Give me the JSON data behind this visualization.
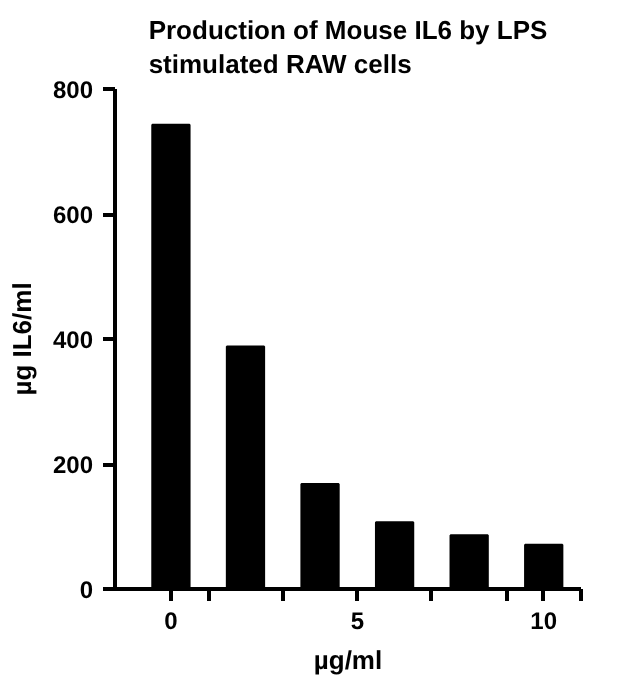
{
  "chart_data": {
    "type": "bar",
    "title": "Production of Mouse IL6 by LPS\nstimulated RAW cells",
    "xlabel": "µg/ml",
    "ylabel": "µg IL6/ml",
    "x": [
      0,
      2,
      4,
      6,
      8,
      10
    ],
    "values": [
      743,
      388,
      168,
      107,
      86,
      71
    ],
    "color": "#000000",
    "xlim": [
      -1.5,
      11
    ],
    "xticks": [
      0,
      {
        "value": 1,
        "label": null
      },
      {
        "value": 3,
        "label": null
      },
      5,
      {
        "value": 7,
        "label": null
      },
      {
        "value": 9,
        "label": null
      },
      10,
      {
        "value": 11,
        "label": null
      }
    ],
    "ylim": [
      0,
      800
    ],
    "yticks": [
      0,
      200,
      400,
      600,
      800
    ],
    "grid": false
  }
}
